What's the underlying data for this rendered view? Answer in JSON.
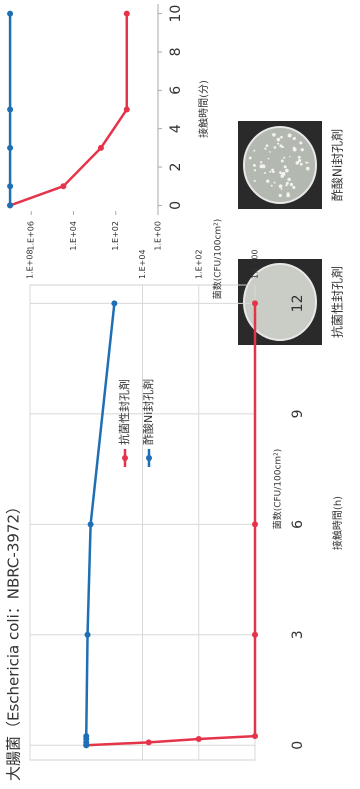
{
  "chart_data": [
    {
      "type": "line",
      "title": "大腸菌（Eschericia coli：NBRC-3972）",
      "x_label": "接触時間(h)",
      "y_label": "菌数(CFU/100cm²)",
      "log_y": true,
      "grid": true,
      "xlim": [
        -0.4,
        12.5
      ],
      "xticks": [
        0,
        3,
        6,
        9,
        12
      ],
      "ylim": [
        1,
        100000000
      ],
      "yticks": [
        {
          "value": 100000000,
          "label": "1.E+08"
        },
        {
          "value": 10000,
          "label": "1.E+04"
        },
        {
          "value": 100,
          "label": "1.E+02"
        },
        {
          "value": 1,
          "label": "1.E+00"
        }
      ],
      "series": [
        {
          "name": "抗菌性封孔剤",
          "color": "#e5344a",
          "x": [
            0,
            0.08,
            0.17,
            0.25,
            3,
            6,
            12
          ],
          "values": [
            1000000,
            6000,
            100,
            1,
            1,
            1,
            1
          ]
        },
        {
          "name": "酢酸Ni封孔剤",
          "color": "#1f6fb4",
          "x": [
            0,
            0.08,
            0.17,
            0.25,
            3,
            6,
            12
          ],
          "values": [
            1000000,
            1000000,
            1000000,
            1000000,
            900000,
            700000,
            100000
          ]
        }
      ]
    },
    {
      "type": "line",
      "x_label": "接触時間(分)",
      "y_label": "菌数(CFU/100cm²)",
      "log_y": true,
      "grid": false,
      "xlim": [
        -0.5,
        10.5
      ],
      "xticks": [
        0,
        2,
        4,
        6,
        8,
        10
      ],
      "ylim": [
        1,
        30000000
      ],
      "yticks": [
        {
          "value": 1000000,
          "label": "1.E+06"
        },
        {
          "value": 10000,
          "label": "1.E+04"
        },
        {
          "value": 100,
          "label": "1.E+02"
        },
        {
          "value": 1,
          "label": "1.E+00"
        }
      ],
      "series": [
        {
          "color": "#e5344a",
          "x": [
            0,
            1,
            3,
            5,
            10
          ],
          "values": [
            10000000,
            30000,
            500,
            30,
            30
          ]
        },
        {
          "color": "#1f6fb4",
          "x": [
            0,
            1,
            3,
            5,
            10
          ],
          "values": [
            10000000,
            10000000,
            10000000,
            10000000,
            10000000
          ]
        }
      ]
    }
  ],
  "photos": [
    {
      "caption": "抗菌性封孔剤"
    },
    {
      "caption": "酢酸Ni封孔剤"
    }
  ]
}
